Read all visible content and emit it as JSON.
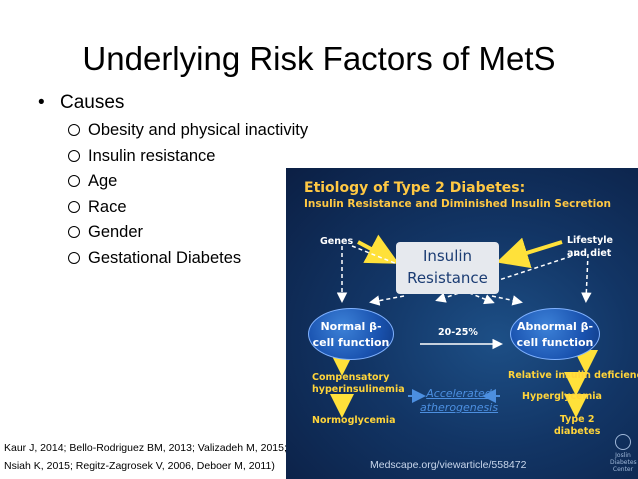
{
  "slide": {
    "title": "Underlying Risk Factors of MetS",
    "bullet": "Causes",
    "sub_bullets": [
      "Obesity and physical inactivity",
      "Insulin resistance",
      "Age",
      "Race",
      "Gender",
      "Gestational Diabetes"
    ],
    "citation_line1": "Kaur J, 2014; Bello-Rodriguez BM, 2013; Valizadeh M, 2015;",
    "citation_line2": "Nsiah K, 2015; Regitz-Zagrosek V, 2006, Deboer M, 2011)"
  },
  "figure": {
    "title": "Etiology of Type 2 Diabetes:",
    "subtitle": "Insulin Resistance and Diminished Insulin Secretion",
    "genes": "Genes",
    "lifestyle_line1": "Lifestyle",
    "lifestyle_line2": "and diet",
    "box_line1": "Insulin",
    "box_line2": "Resistance",
    "normal_line1": "Normal β-",
    "normal_line2": "cell function",
    "abnormal_line1": "Abnormal β-",
    "abnormal_line2": "cell function",
    "percent": "20-25%",
    "compensatory_line1": "Compensatory",
    "compensatory_line2": "hyperinsulinemia",
    "normoglycemia": "Normoglycemia",
    "relative": "Relative insulin deficiency",
    "hyperglycemia": "Hyperglycemia",
    "type2_line1": "Type 2",
    "type2_line2": "diabetes",
    "accel_line1": "Accelerated",
    "accel_line2": "atherogenesis",
    "logo_line1": "Joslin",
    "logo_line2": "Diabetes",
    "logo_line3": "Center",
    "source": "Medscape.org/viewarticle/558472",
    "colors": {
      "title": "#ffc843",
      "background": "#123565",
      "oval": "#1a53b0",
      "arrow": "#ffe13a"
    }
  }
}
